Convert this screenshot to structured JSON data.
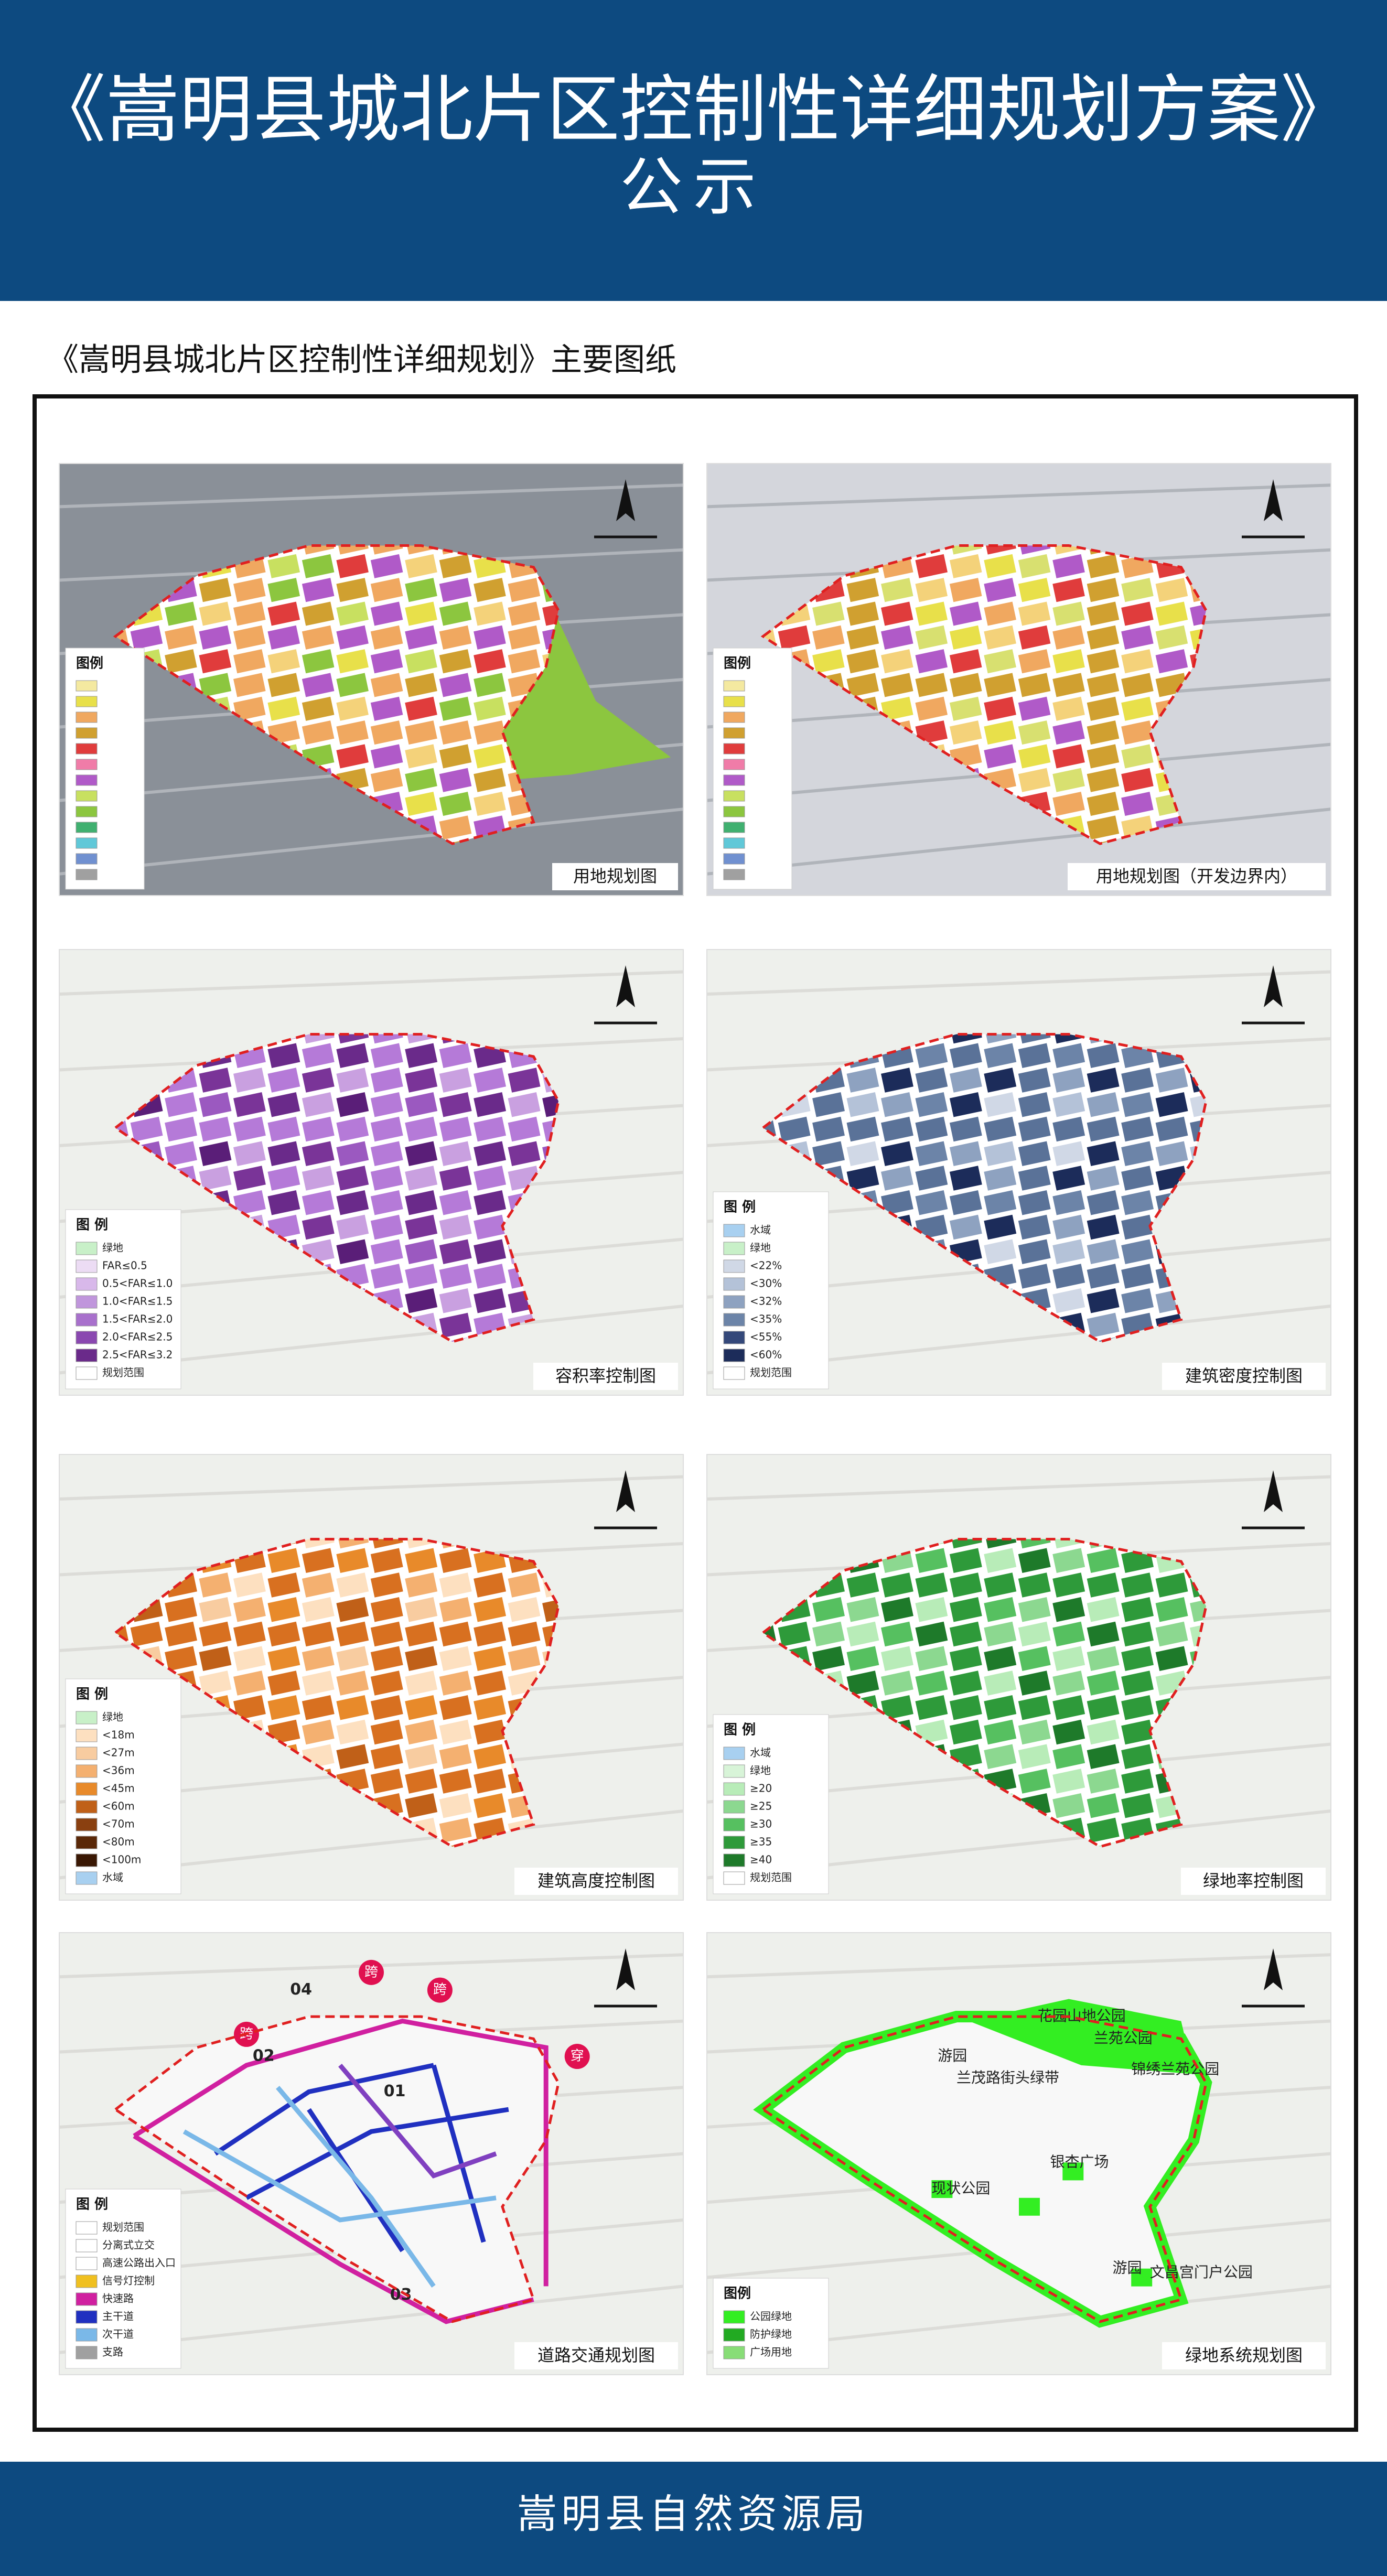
{
  "header": {
    "title": "《嵩明县城北片区控制性详细规划方案》",
    "subtitle": "公示"
  },
  "section_title": "《嵩明县城北片区控制性详细规划》主要图纸",
  "panels": [
    {
      "caption": "用地规划图",
      "style": "aerial",
      "colors": [
        "#e8e04a",
        "#f0a860",
        "#c8e060",
        "#8cc63f",
        "#e03c3c",
        "#b05ac8",
        "#f4d27a",
        "#d0a030"
      ],
      "legend": {
        "title": "图例",
        "swatches": [
          "#f4e9a0",
          "#e8e04a",
          "#f0a860",
          "#d0a030",
          "#e03c3c",
          "#f07ca8",
          "#b05ac8",
          "#c8e060",
          "#8cc63f",
          "#40b070",
          "#60c8d8",
          "#7090d0",
          "#a0a0a0"
        ]
      }
    },
    {
      "caption": "用地规划图（开发边界内）",
      "style": "aerial-light",
      "colors": [
        "#e8e04a",
        "#f0a860",
        "#d8e070",
        "#e03c3c",
        "#b05ac8",
        "#f4d27a",
        "#d0a030"
      ],
      "legend": {
        "title": "图例",
        "swatches": [
          "#f4e9a0",
          "#e8e04a",
          "#f0a860",
          "#d0a030",
          "#e03c3c",
          "#f07ca8",
          "#b05ac8",
          "#c8e060",
          "#8cc63f",
          "#40b070",
          "#60c8d8",
          "#7090d0",
          "#a0a0a0"
        ]
      }
    },
    {
      "caption": "容积率控制图",
      "style": "plain",
      "colors": [
        "#6a2a8a",
        "#7a3498",
        "#9b59c0",
        "#b57ad8",
        "#5a1e78",
        "#c9a0e0"
      ],
      "legend": {
        "title": "图  例",
        "items": [
          {
            "label": "绿地",
            "color": "#c8f0c8"
          },
          {
            "label": "FAR≤0.5",
            "color": "#ecdcf4"
          },
          {
            "label": "0.5<FAR≤1.0",
            "color": "#d8b8ea"
          },
          {
            "label": "1.0<FAR≤1.5",
            "color": "#c096dc"
          },
          {
            "label": "1.5<FAR≤2.0",
            "color": "#a870cc"
          },
          {
            "label": "2.0<FAR≤2.5",
            "color": "#8a48b0"
          },
          {
            "label": "2.5<FAR≤3.2",
            "color": "#6a2a8a"
          },
          {
            "label": "规划范围",
            "color": "#ffffff"
          }
        ]
      }
    },
    {
      "caption": "建筑密度控制图",
      "style": "plain",
      "colors": [
        "#6c84a8",
        "#8ea2c0",
        "#b4c2d8",
        "#5a7298",
        "#d0d8e6",
        "#1c2c5a"
      ],
      "legend": {
        "title": "图  例",
        "items": [
          {
            "label": "水域",
            "color": "#a8d0f0"
          },
          {
            "label": "绿地",
            "color": "#c8f0c8"
          },
          {
            "label": "<22%",
            "color": "#d0d8e6"
          },
          {
            "label": "<30%",
            "color": "#b4c2d8"
          },
          {
            "label": "<32%",
            "color": "#8ea2c0"
          },
          {
            "label": "<35%",
            "color": "#6c84a8"
          },
          {
            "label": "<55%",
            "color": "#34487a"
          },
          {
            "label": "<60%",
            "color": "#1c2c5a"
          },
          {
            "label": "规划范围",
            "color": "#ffffff"
          }
        ]
      }
    },
    {
      "caption": "建筑高度控制图",
      "style": "plain",
      "colors": [
        "#e88a2a",
        "#f4b070",
        "#f8cca0",
        "#d87020",
        "#c06018",
        "#fde0c0"
      ],
      "legend": {
        "title": "图  例",
        "items": [
          {
            "label": "绿地",
            "color": "#c8f0c8"
          },
          {
            "label": "<18m",
            "color": "#fde0c0"
          },
          {
            "label": "<27m",
            "color": "#f8cca0"
          },
          {
            "label": "<36m",
            "color": "#f4b070"
          },
          {
            "label": "<45m",
            "color": "#e88a2a"
          },
          {
            "label": "<60m",
            "color": "#c06018"
          },
          {
            "label": "<70m",
            "color": "#8a4010"
          },
          {
            "label": "<80m",
            "color": "#5a2808"
          },
          {
            "label": "<100m",
            "color": "#3a1804"
          },
          {
            "label": "水域",
            "color": "#a8d0f0"
          }
        ]
      }
    },
    {
      "caption": "绿地率控制图",
      "style": "plain",
      "colors": [
        "#2e9a3a",
        "#56c060",
        "#8cd890",
        "#1e7a2a",
        "#b8ecb8"
      ],
      "legend": {
        "title": "图  例",
        "items": [
          {
            "label": "水域",
            "color": "#a8d0f0"
          },
          {
            "label": "绿地",
            "color": "#d8f4d8"
          },
          {
            "label": "≥20",
            "color": "#b8ecb8"
          },
          {
            "label": "≥25",
            "color": "#8cd890"
          },
          {
            "label": "≥30",
            "color": "#56c060"
          },
          {
            "label": "≥35",
            "color": "#2e9a3a"
          },
          {
            "label": "≥40",
            "color": "#1e7a2a"
          },
          {
            "label": "规划范围",
            "color": "#ffffff"
          }
        ]
      }
    },
    {
      "caption": "道路交通规划图",
      "style": "roads",
      "colors": [],
      "labels": [
        "04",
        "02",
        "01",
        "03"
      ],
      "badges": [
        "跨",
        "跨",
        "跨",
        "穿"
      ],
      "legend": {
        "title": "图 例",
        "items": [
          {
            "label": "规划范围",
            "color": "#ffffff"
          },
          {
            "label": "分离式立交",
            "color": "#ffffff"
          },
          {
            "label": "高速公路出入口",
            "color": "#ffffff"
          },
          {
            "label": "信号灯控制",
            "color": "#f0c020"
          },
          {
            "label": "快速路",
            "color": "#d020a0"
          },
          {
            "label": "主干道",
            "color": "#2030c0"
          },
          {
            "label": "次干道",
            "color": "#7ab8e8"
          },
          {
            "label": "支路",
            "color": "#a0a0a0"
          }
        ]
      }
    },
    {
      "caption": "绿地系统规划图",
      "style": "green",
      "colors": [],
      "labels": [
        "花园山地公园",
        "兰苑公园",
        "游园",
        "兰茂路街头绿带",
        "锦绣兰苑公园",
        "银杏广场",
        "现状公园",
        "游园",
        "文昌宫门户公园"
      ],
      "legend": {
        "title": "图例",
        "items": [
          {
            "label": "公园绿地",
            "color": "#33ee22"
          },
          {
            "label": "防护绿地",
            "color": "#22aa22"
          },
          {
            "label": "广场用地",
            "color": "#88dd77"
          }
        ]
      }
    }
  ],
  "footer": "嵩明县自然资源局"
}
